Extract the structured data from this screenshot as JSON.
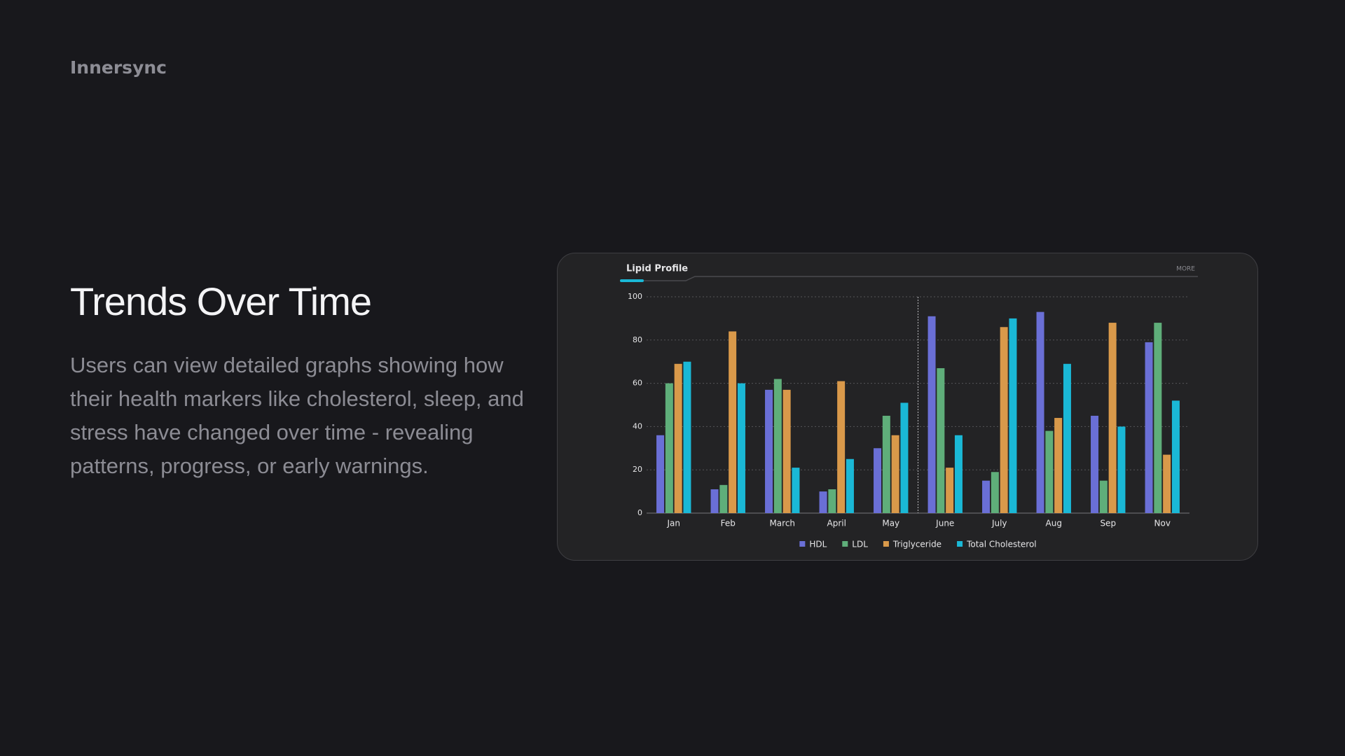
{
  "brand": "Innersync",
  "heading": "Trends Over Time",
  "description": "Users can view detailed graphs showing how their health markers like cholesterol, sleep, and stress have changed over time - revealing patterns, progress, or early warnings.",
  "chart_data": {
    "type": "bar",
    "title": "Lipid Profile",
    "action": "MORE",
    "categories": [
      "Jan",
      "Feb",
      "March",
      "April",
      "May",
      "June",
      "July",
      "Aug",
      "Sep",
      "Nov"
    ],
    "series": [
      {
        "name": "HDL",
        "color": "#6a6fd6",
        "values": [
          36,
          11,
          57,
          10,
          30,
          91,
          15,
          93,
          45,
          79
        ]
      },
      {
        "name": "LDL",
        "color": "#5fae7a",
        "values": [
          60,
          13,
          62,
          11,
          45,
          67,
          19,
          38,
          15,
          88
        ]
      },
      {
        "name": "Triglyceride",
        "color": "#d9994a",
        "values": [
          69,
          84,
          57,
          61,
          36,
          21,
          86,
          44,
          88,
          27
        ]
      },
      {
        "name": "Total Cholesterol",
        "color": "#1ab8d6",
        "values": [
          70,
          60,
          21,
          25,
          51,
          36,
          90,
          69,
          40,
          52
        ]
      }
    ],
    "ylim": [
      0,
      100
    ],
    "yticks": [
      0,
      20,
      40,
      60,
      80,
      100
    ],
    "grid": true,
    "legend": "bottom"
  }
}
